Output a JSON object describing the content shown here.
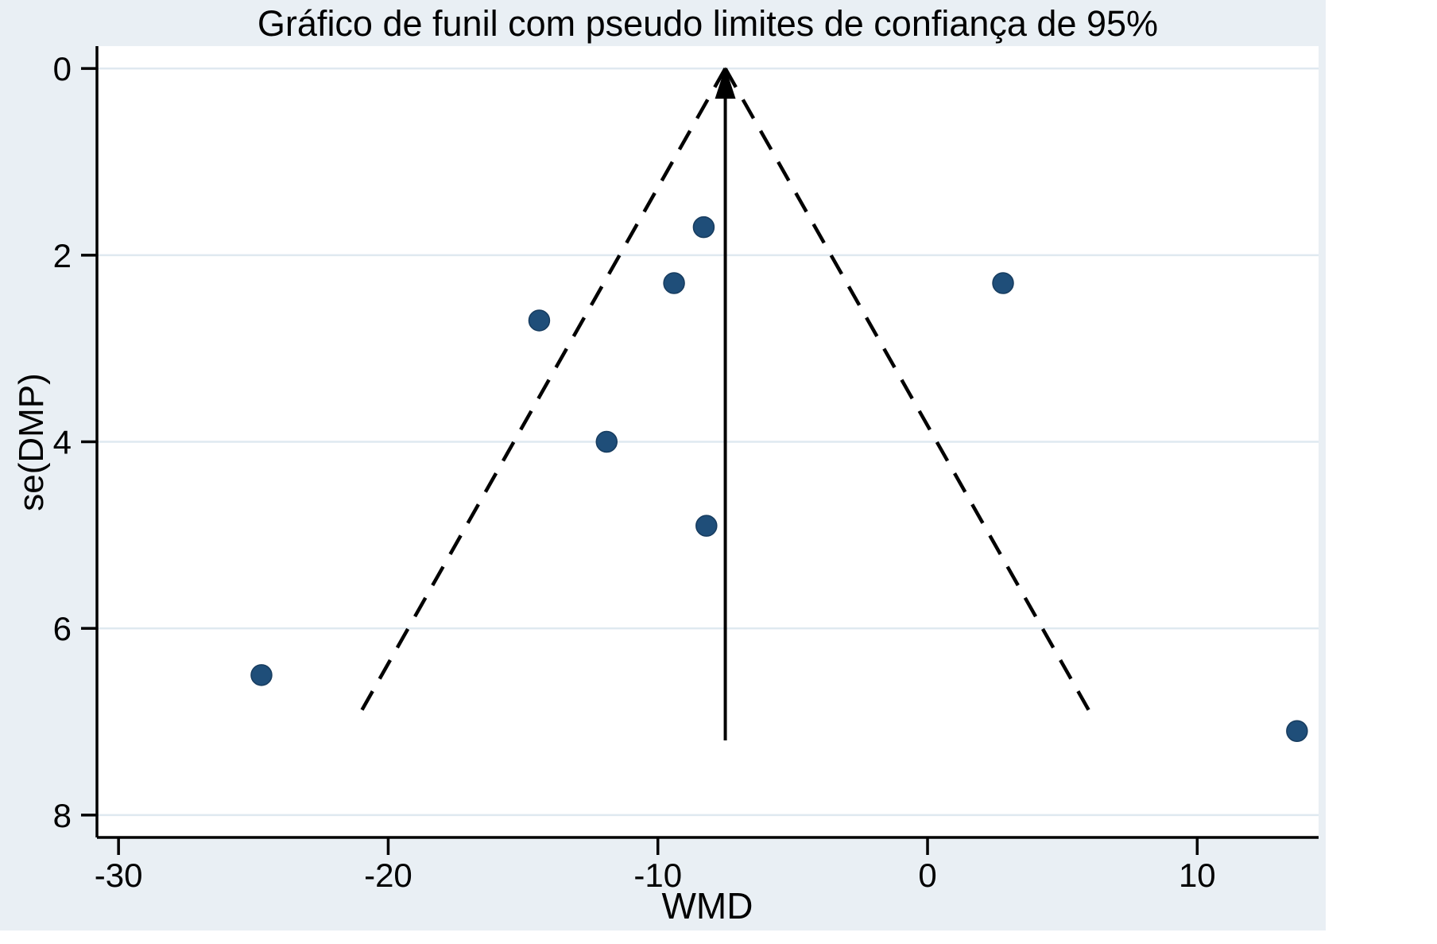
{
  "chart_data": {
    "type": "scatter",
    "title": "Gráfico de funil com pseudo limites de confiança de 95%",
    "xlabel": "WMD",
    "ylabel": "se(DMP)",
    "x_ticks": [
      -30,
      -20,
      -10,
      0,
      10
    ],
    "y_ticks": [
      0,
      2,
      4,
      6,
      8
    ],
    "xlim": [
      -30.8,
      14.5
    ],
    "ylim": [
      -0.24,
      8.24
    ],
    "y_axis_inverted": true,
    "grid": true,
    "legend": "none",
    "points": [
      {
        "wmd": -8.3,
        "se": 1.7
      },
      {
        "wmd": -9.4,
        "se": 2.3
      },
      {
        "wmd": -14.4,
        "se": 2.7
      },
      {
        "wmd": -11.9,
        "se": 4.0
      },
      {
        "wmd": -8.2,
        "se": 4.9
      },
      {
        "wmd": -24.7,
        "se": 6.5
      },
      {
        "wmd": 2.8,
        "se": 2.3
      },
      {
        "wmd": 13.7,
        "se": 7.1
      }
    ],
    "pooled_estimate_wmd": -7.5,
    "funnel": {
      "apex_wmd": -7.5,
      "apex_se": 0,
      "ci_multiplier": 1.96,
      "max_se": 7.0
    },
    "colors": {
      "marker": "#1f4e79",
      "marker_edge": "#173c5f",
      "background": "#e9eff4",
      "plot_background": "#ffffff",
      "gridline": "#dfe9f0",
      "axis": "#000000"
    }
  }
}
